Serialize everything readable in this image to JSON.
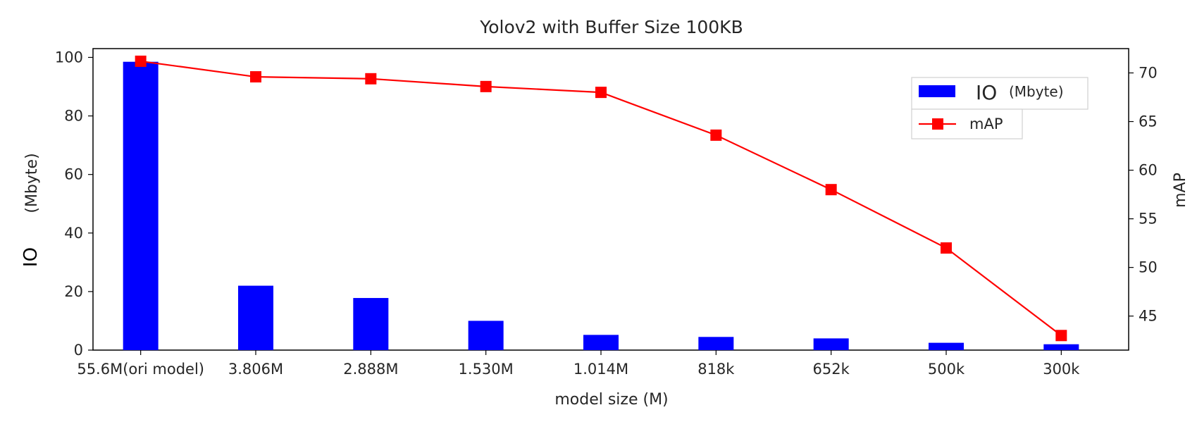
{
  "chart_data": {
    "type": "bar",
    "title": "Yolov2 with Buffer Size 100KB",
    "xlabel": "model size (M)",
    "ylabel_left": {
      "main": "IO",
      "unit": "(Mbyte)"
    },
    "ylabel_right": "mAP",
    "categories": [
      "55.6M(ori model)",
      "3.806M",
      "2.888M",
      "1.530M",
      "1.014M",
      "818k",
      "652k",
      "500k",
      "300k"
    ],
    "ylim_left": [
      0,
      103
    ],
    "yticks_left": [
      0,
      20,
      40,
      60,
      80,
      100
    ],
    "ylim_right": [
      41.5,
      72.5
    ],
    "yticks_right": [
      45,
      50,
      55,
      60,
      65,
      70
    ],
    "grid": false,
    "legend_position": "upper right",
    "series": [
      {
        "name": "IO",
        "name_unit": "(Mbyte)",
        "type": "bar",
        "axis": "left",
        "color": "#0000ff",
        "values": [
          98.5,
          22,
          17.8,
          10,
          5.2,
          4.5,
          4,
          2.5,
          2
        ]
      },
      {
        "name": "mAP",
        "type": "line",
        "axis": "right",
        "color": "#ff0000",
        "marker": "square",
        "values": [
          71.2,
          69.6,
          69.4,
          68.6,
          68.0,
          63.6,
          58.0,
          52.0,
          43.0
        ]
      }
    ]
  }
}
